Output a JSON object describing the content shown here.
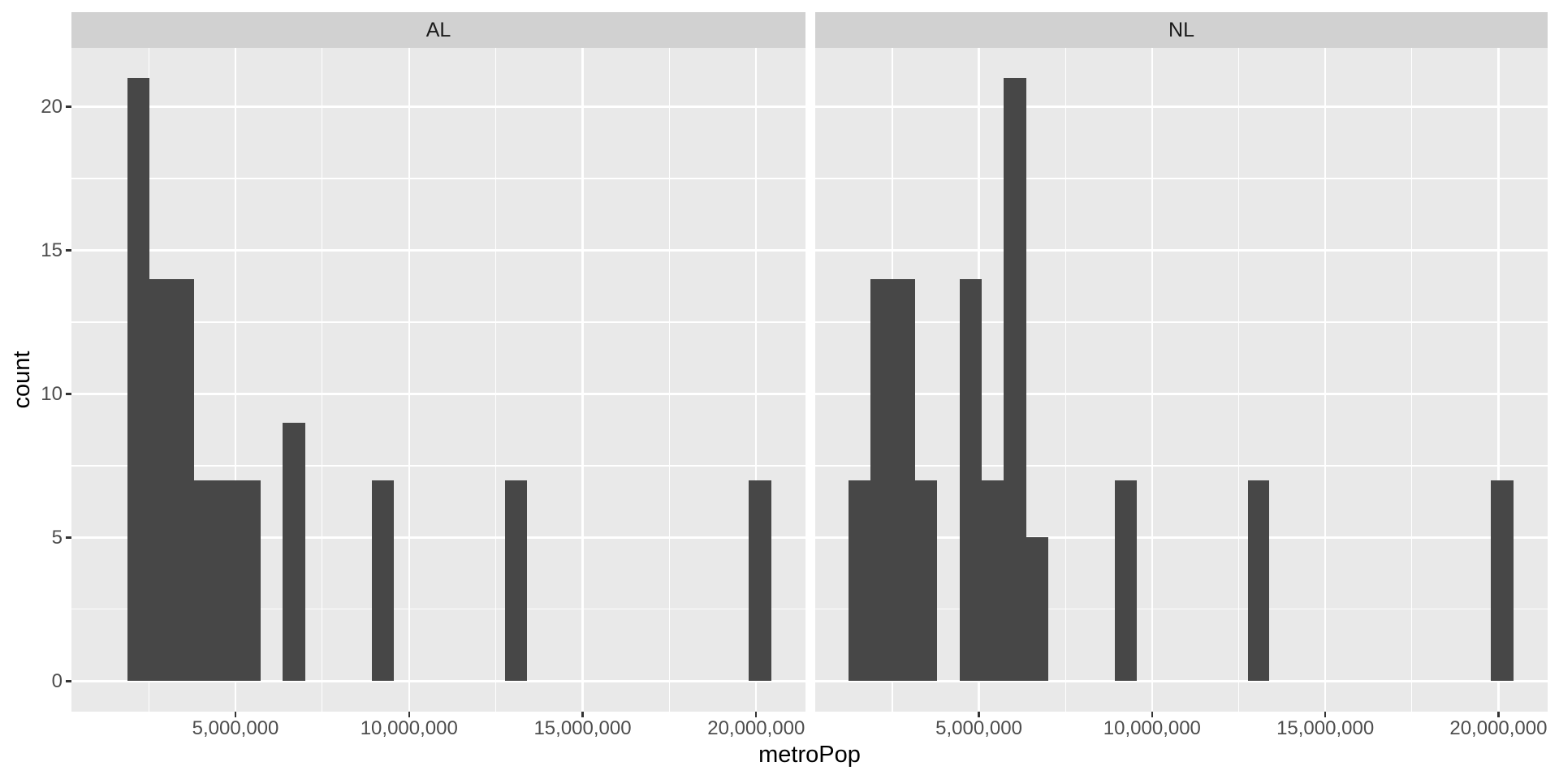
{
  "colors": {
    "background": "#ffffff",
    "panel_bg": "#e9e9e9",
    "strip_bg": "#d1d1d1",
    "grid": "#ffffff",
    "bar": "#474747",
    "tick_mark": "#333333",
    "tick_label": "#4d4d4d",
    "axis_title": "#000000",
    "strip_text": "#1a1a1a"
  },
  "chart_data": {
    "type": "bar",
    "subtype": "faceted-histogram",
    "title": "",
    "xlabel": "metroPop",
    "ylabel": "count",
    "legend": "none",
    "grid": "on",
    "binwidth": 640000,
    "xlim": [
      275000,
      21420000
    ],
    "ylim": [
      -1.05,
      22.05
    ],
    "x_tick_values": [
      5000000,
      10000000,
      15000000,
      20000000
    ],
    "x_tick_labels": [
      "5,000,000",
      "10,000,000",
      "15,000,000",
      "20,000,000"
    ],
    "x_minor_values": [
      2500000,
      7500000,
      12500000,
      17500000
    ],
    "y_tick_values": [
      0,
      5,
      10,
      15,
      20
    ],
    "y_tick_labels": [
      "0",
      "5",
      "10",
      "15",
      "20"
    ],
    "y_minor_values": [
      2.5,
      7.5,
      12.5,
      17.5
    ],
    "facets": [
      {
        "label": "AL",
        "bars": [
          {
            "x0": 1880000,
            "x1": 2520000,
            "count": 21
          },
          {
            "x0": 2520000,
            "x1": 3800000,
            "count": 14
          },
          {
            "x0": 3800000,
            "x1": 5720000,
            "count": 7
          },
          {
            "x0": 6360000,
            "x1": 7000000,
            "count": 9
          },
          {
            "x0": 8920000,
            "x1": 9560000,
            "count": 7
          },
          {
            "x0": 12760000,
            "x1": 13390000,
            "count": 7
          },
          {
            "x0": 19790000,
            "x1": 20430000,
            "count": 7
          }
        ]
      },
      {
        "label": "NL",
        "bars": [
          {
            "x0": 1240000,
            "x1": 1880000,
            "count": 7
          },
          {
            "x0": 1880000,
            "x1": 3160000,
            "count": 14
          },
          {
            "x0": 3160000,
            "x1": 3800000,
            "count": 7
          },
          {
            "x0": 4440000,
            "x1": 5080000,
            "count": 14
          },
          {
            "x0": 5080000,
            "x1": 5720000,
            "count": 7
          },
          {
            "x0": 5720000,
            "x1": 6360000,
            "count": 21
          },
          {
            "x0": 6360000,
            "x1": 7000000,
            "count": 5
          },
          {
            "x0": 8920000,
            "x1": 9560000,
            "count": 7
          },
          {
            "x0": 12760000,
            "x1": 13390000,
            "count": 7
          },
          {
            "x0": 19790000,
            "x1": 20430000,
            "count": 7
          }
        ]
      }
    ]
  }
}
